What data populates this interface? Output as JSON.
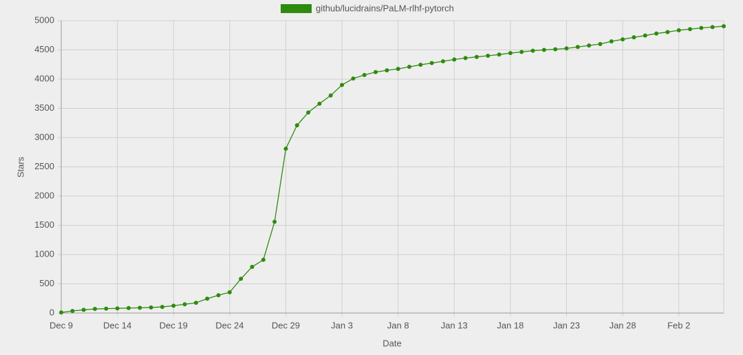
{
  "chart_data": {
    "type": "line",
    "xlabel": "Date",
    "ylabel": "Stars",
    "categories": [
      "Dec 9",
      null,
      null,
      null,
      null,
      "Dec 14",
      null,
      null,
      null,
      null,
      "Dec 19",
      null,
      null,
      null,
      null,
      "Dec 24",
      null,
      null,
      null,
      null,
      "Dec 29",
      null,
      null,
      null,
      null,
      "Jan 3",
      null,
      null,
      null,
      null,
      "Jan 8",
      null,
      null,
      null,
      null,
      "Jan 13",
      null,
      null,
      null,
      null,
      "Jan 18",
      null,
      null,
      null,
      null,
      "Jan 23",
      null,
      null,
      null,
      null,
      "Jan 28",
      null,
      null,
      null,
      null,
      "Feb 2",
      null,
      null,
      null,
      null
    ],
    "series": [
      {
        "name": "github/lucidrains/PaLM-rlhf-pytorch",
        "color": "#2e8b0e",
        "values": [
          10,
          35,
          55,
          70,
          75,
          80,
          85,
          90,
          95,
          105,
          125,
          150,
          175,
          245,
          305,
          355,
          585,
          790,
          910,
          1560,
          2810,
          3210,
          3430,
          3580,
          3720,
          3900,
          4010,
          4070,
          4120,
          4150,
          4175,
          4210,
          4245,
          4275,
          4305,
          4335,
          4360,
          4380,
          4400,
          4420,
          4445,
          4465,
          4485,
          4500,
          4510,
          4525,
          4550,
          4575,
          4600,
          4645,
          4680,
          4715,
          4745,
          4780,
          4805,
          4835,
          4855,
          4875,
          4890,
          4905
        ]
      }
    ],
    "ylim": [
      0,
      5000
    ],
    "yticks": [
      0,
      500,
      1000,
      1500,
      2000,
      2500,
      3000,
      3500,
      4000,
      4500,
      5000
    ],
    "grid": true,
    "legend": "top"
  }
}
